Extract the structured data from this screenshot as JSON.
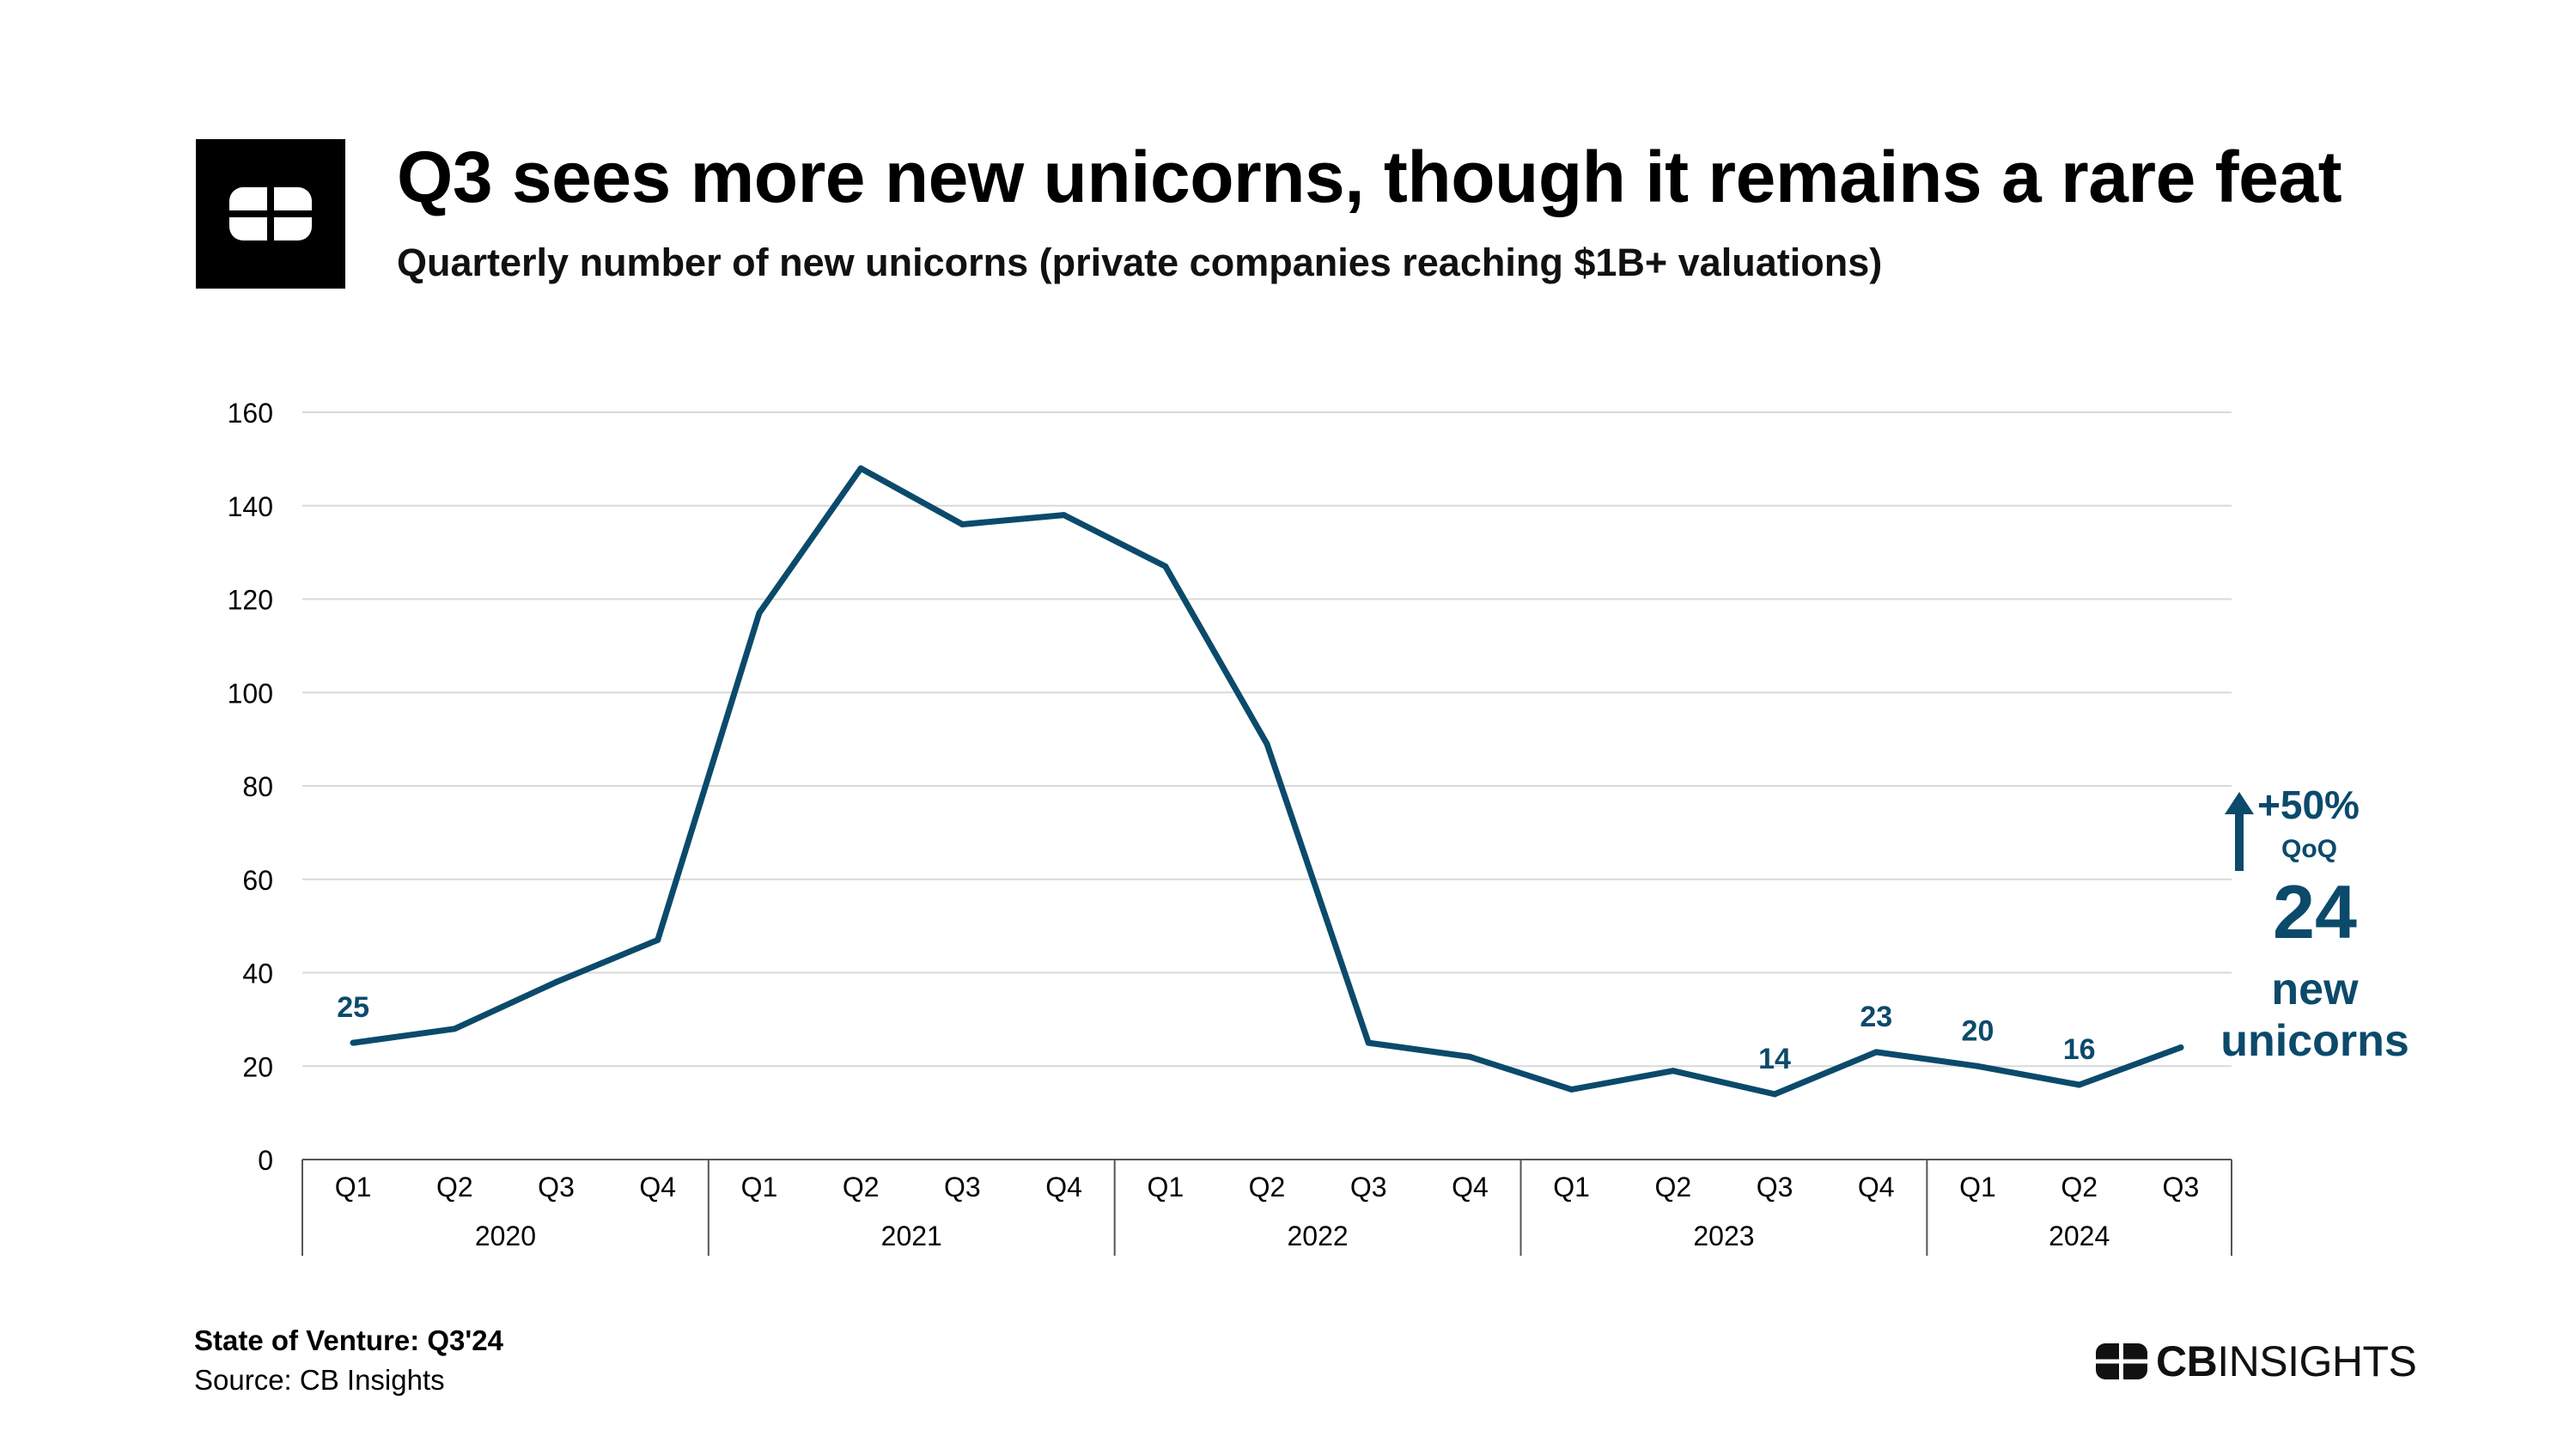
{
  "header": {
    "title": "Q3 sees more new unicorns, though it remains a rare feat",
    "subtitle": "Quarterly number of new unicorns (private companies reaching $1B+ valuations)"
  },
  "callout": {
    "change": "+50%",
    "change_period": "QoQ",
    "value": "24",
    "label_line1": "new",
    "label_line2": "unicorns",
    "color": "#0b4a6b"
  },
  "footer": {
    "title": "State of Venture: Q3'24",
    "source": "Source: CB Insights"
  },
  "brand": {
    "logo_icon": "cb-insights-logo-icon",
    "name_bold": "CB",
    "name_regular": "INSIGHTS"
  },
  "chart_data": {
    "type": "line",
    "line_color": "#0b4a6b",
    "grid": true,
    "ylim": [
      0,
      160
    ],
    "yticks": [
      0,
      20,
      40,
      60,
      80,
      100,
      120,
      140,
      160
    ],
    "categories": [
      "Q1",
      "Q2",
      "Q3",
      "Q4",
      "Q1",
      "Q2",
      "Q3",
      "Q4",
      "Q1",
      "Q2",
      "Q3",
      "Q4",
      "Q1",
      "Q2",
      "Q3",
      "Q4",
      "Q1",
      "Q2",
      "Q3"
    ],
    "groups": [
      {
        "label": "2020",
        "count": 4
      },
      {
        "label": "2021",
        "count": 4
      },
      {
        "label": "2022",
        "count": 4
      },
      {
        "label": "2023",
        "count": 4
      },
      {
        "label": "2024",
        "count": 3
      }
    ],
    "values": [
      25,
      28,
      38,
      47,
      117,
      148,
      136,
      138,
      127,
      89,
      25,
      22,
      15,
      19,
      14,
      23,
      20,
      16,
      24
    ],
    "data_labels": [
      {
        "index": 0,
        "text": "25"
      },
      {
        "index": 14,
        "text": "14"
      },
      {
        "index": 15,
        "text": "23"
      },
      {
        "index": 16,
        "text": "20"
      },
      {
        "index": 17,
        "text": "16"
      }
    ]
  }
}
